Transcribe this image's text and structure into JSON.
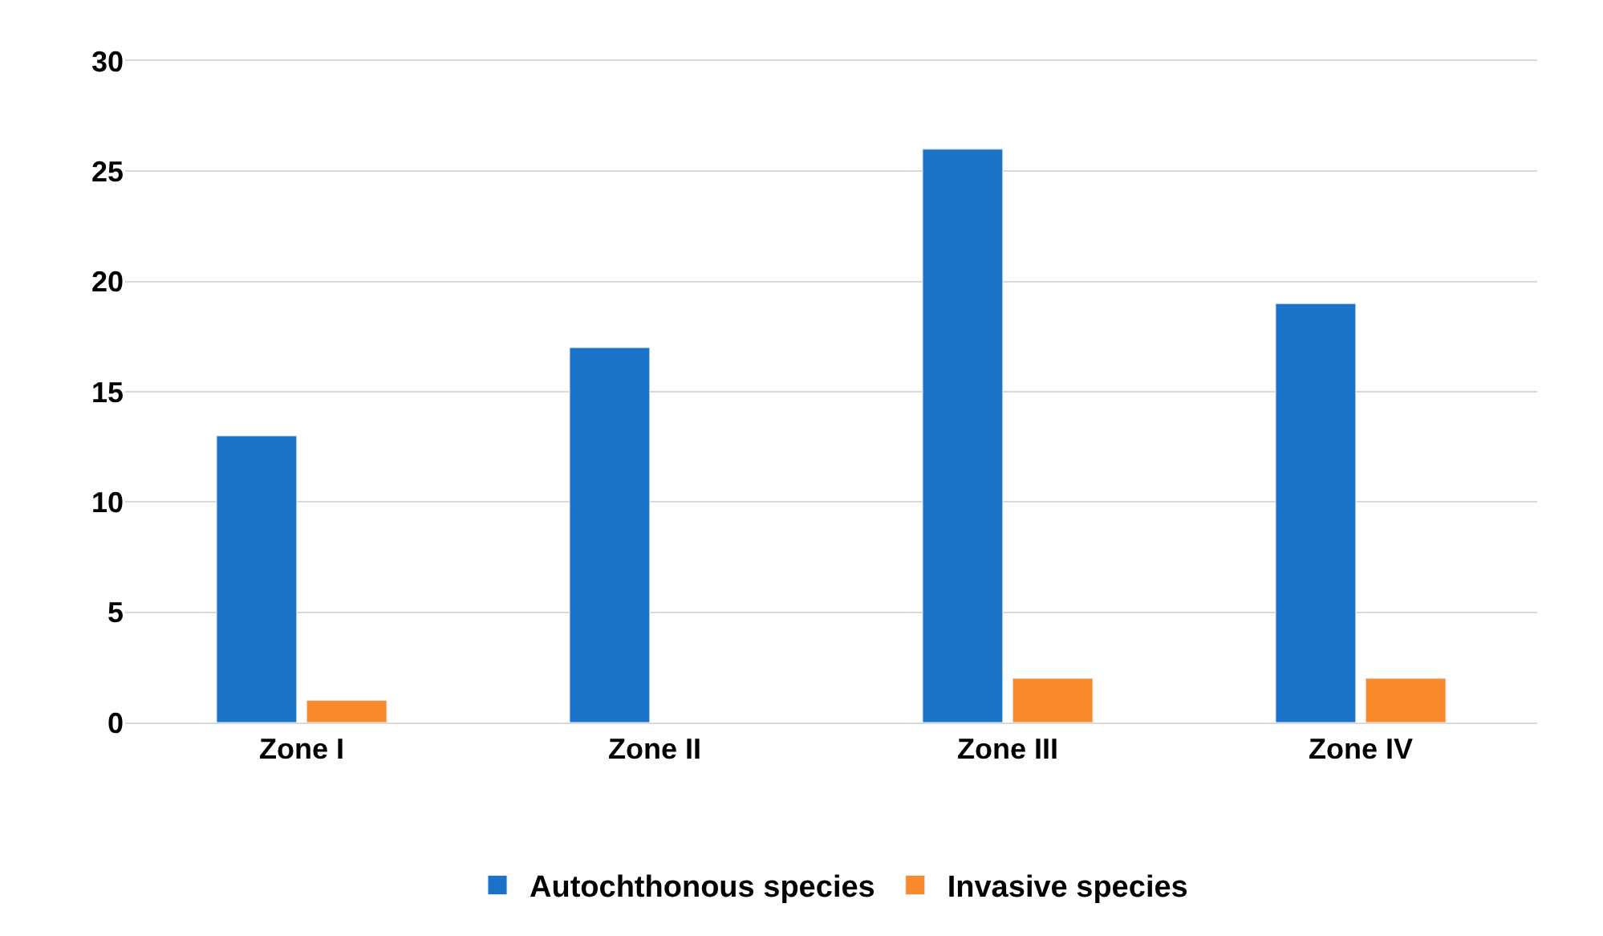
{
  "chart_data": {
    "type": "bar",
    "categories": [
      "Zone I",
      "Zone II",
      "Zone III",
      "Zone IV"
    ],
    "series": [
      {
        "name": "Autochthonous species",
        "color": "#1a73c9",
        "values": [
          13,
          17,
          26,
          19
        ]
      },
      {
        "name": "Invasive species",
        "color": "#f98a2b",
        "values": [
          1,
          null,
          2,
          2
        ]
      }
    ],
    "ylim": [
      0,
      30
    ],
    "yticks": [
      0,
      5,
      10,
      15,
      20,
      25,
      30
    ],
    "grid": "y",
    "legend": "bottom"
  }
}
